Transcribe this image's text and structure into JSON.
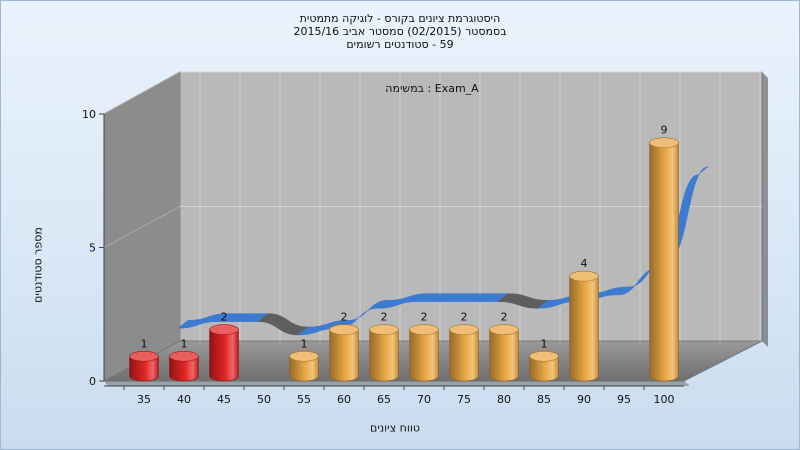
{
  "titles": [
    "היסטוגרמת ציונים בקורס - לוגיקה מתמטית",
    "בסמסטר  (02/2015)  סמסטר אביב 2015/16",
    "59 - סטודנטים רשומים"
  ],
  "chart_data": {
    "type": "bar",
    "inner_label": "Exam_A : במשימה",
    "xlabel": "טווח ציונים",
    "ylabel": "מספר סטודנטים",
    "ylim": [
      0,
      10
    ],
    "yticks": [
      0,
      5,
      10
    ],
    "categories": [
      "35",
      "40",
      "45",
      "50",
      "55",
      "60",
      "65",
      "70",
      "75",
      "80",
      "85",
      "90",
      "95",
      "100"
    ],
    "values": [
      1,
      1,
      2,
      0,
      1,
      2,
      2,
      2,
      2,
      2,
      1,
      4,
      0,
      9
    ],
    "bar_colors": [
      "#e11b1b",
      "#e11b1b",
      "#e11b1b",
      "#e9a43c",
      "#e9a43c",
      "#e9a43c",
      "#e9a43c",
      "#e9a43c",
      "#e9a43c",
      "#e9a43c",
      "#e9a43c",
      "#e9a43c",
      "#e9a43c",
      "#e9a43c"
    ],
    "grid": true
  }
}
